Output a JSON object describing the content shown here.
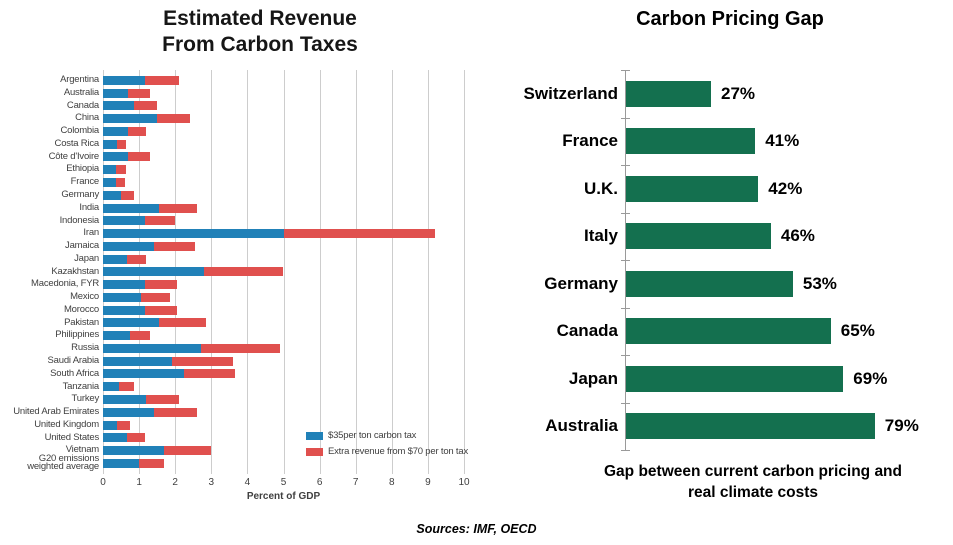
{
  "header": {
    "left_title_line1": "Estimated Revenue",
    "left_title_line2": "From Carbon Taxes"
  },
  "chart_data": [
    {
      "type": "bar",
      "orientation": "horizontal",
      "stacked": true,
      "title": "Estimated Revenue From Carbon Taxes",
      "xlabel": "Percent of GDP",
      "xlim": [
        0,
        10
      ],
      "xticks": [
        0,
        1,
        2,
        3,
        4,
        5,
        6,
        7,
        8,
        9,
        10
      ],
      "grid": true,
      "legend_position": "inside-lower-right",
      "categories": [
        "Argentina",
        "Australia",
        "Canada",
        "China",
        "Colombia",
        "Costa Rica",
        "Côte d'Ivoire",
        "Ethiopia",
        "France",
        "Germany",
        "India",
        "Indonesia",
        "Iran",
        "Jamaica",
        "Japan",
        "Kazakhstan",
        "Macedonia, FYR",
        "Mexico",
        "Morocco",
        "Pakistan",
        "Philippines",
        "Russia",
        "Saudi Arabia",
        "South Africa",
        "Tanzania",
        "Turkey",
        "United Arab Emirates",
        "United Kingdom",
        "United States",
        "Vietnam",
        "G20 emissions\nweighted average"
      ],
      "series": [
        {
          "name": "$35per ton carbon tax",
          "color": "#2181b8",
          "values": [
            1.15,
            0.7,
            0.85,
            1.5,
            0.7,
            0.4,
            0.7,
            0.35,
            0.35,
            0.5,
            1.55,
            1.15,
            5.0,
            1.4,
            0.65,
            2.8,
            1.15,
            1.05,
            1.15,
            1.55,
            0.75,
            2.7,
            1.9,
            2.25,
            0.45,
            1.2,
            1.4,
            0.4,
            0.65,
            1.7,
            1.0
          ]
        },
        {
          "name": "Extra revenue from $70 per ton tax",
          "color": "#e0504e",
          "values": [
            0.95,
            0.6,
            0.65,
            0.9,
            0.5,
            0.25,
            0.6,
            0.3,
            0.25,
            0.35,
            1.05,
            0.85,
            4.2,
            1.15,
            0.55,
            2.2,
            0.9,
            0.8,
            0.9,
            1.3,
            0.55,
            2.2,
            1.7,
            1.4,
            0.4,
            0.9,
            1.2,
            0.35,
            0.5,
            1.3,
            0.7
          ]
        }
      ]
    },
    {
      "type": "bar",
      "orientation": "horizontal",
      "title": "Carbon Pricing Gap",
      "categories": [
        "Switzerland",
        "France",
        "U.K.",
        "Italy",
        "Germany",
        "Canada",
        "Japan",
        "Australia"
      ],
      "values": [
        27,
        41,
        42,
        46,
        53,
        65,
        69,
        79
      ],
      "value_labels": [
        "27%",
        "41%",
        "42%",
        "46%",
        "53%",
        "65%",
        "69%",
        "79%"
      ],
      "bar_color": "#14704f",
      "xlim": [
        0,
        100
      ],
      "grid": false,
      "caption": "Gap between current carbon pricing and real climate costs"
    }
  ],
  "footer": {
    "sources": "Sources: IMF, OECD"
  }
}
